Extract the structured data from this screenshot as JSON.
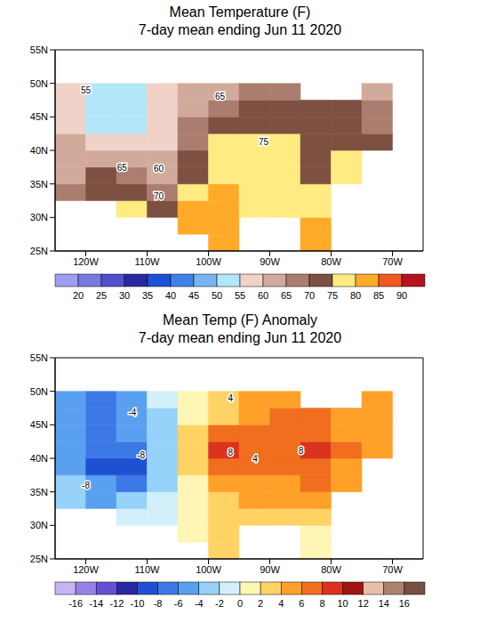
{
  "chart_data": [
    {
      "type": "heatmap",
      "title": "Mean Temperature (F)",
      "subtitle": "7-day mean ending Jun 11 2020",
      "xlim": [
        -125,
        -65
      ],
      "ylim": [
        25,
        55
      ],
      "xticks": [
        {
          "value": -120,
          "label": "120W"
        },
        {
          "value": -110,
          "label": "110W"
        },
        {
          "value": -100,
          "label": "100W"
        },
        {
          "value": -90,
          "label": "90W"
        },
        {
          "value": -80,
          "label": "80W"
        },
        {
          "value": -70,
          "label": "70W"
        }
      ],
      "yticks": [
        {
          "value": 25,
          "label": "25N"
        },
        {
          "value": 30,
          "label": "30N"
        },
        {
          "value": 35,
          "label": "35N"
        },
        {
          "value": 40,
          "label": "40N"
        },
        {
          "value": 45,
          "label": "45N"
        },
        {
          "value": 50,
          "label": "50N"
        },
        {
          "value": 55,
          "label": "55N"
        }
      ],
      "cells": {
        "lon": [
          -125,
          -120,
          -115,
          -110,
          -105,
          -100,
          -95,
          -90,
          -85,
          -80,
          -75,
          -70,
          -65
        ],
        "lat": [
          25,
          27.5,
          30,
          32.5,
          35,
          37.5,
          40,
          42.5,
          45,
          47.5,
          50
        ],
        "values": [
          [
            null,
            null,
            null,
            null,
            null,
            84,
            null,
            null,
            82,
            null,
            null,
            null
          ],
          [
            null,
            null,
            null,
            null,
            82,
            83,
            null,
            null,
            80,
            null,
            null,
            null
          ],
          [
            null,
            null,
            76,
            74,
            80,
            83,
            79,
            79,
            78,
            null,
            null,
            null
          ],
          [
            65,
            74,
            72,
            68,
            78,
            80,
            79,
            79,
            78,
            null,
            null,
            null
          ],
          [
            64,
            72,
            65,
            63,
            74,
            79,
            79,
            77,
            72,
            77,
            null,
            null
          ],
          [
            62,
            63,
            60,
            60,
            72,
            78,
            78,
            77,
            74,
            76,
            null,
            null
          ],
          [
            60,
            58,
            55,
            58,
            68,
            77,
            77,
            75,
            73,
            72,
            70,
            null
          ],
          [
            58,
            52,
            54,
            58,
            68,
            74,
            73,
            73,
            72,
            70,
            66,
            null
          ],
          [
            56,
            50,
            52,
            58,
            64,
            68,
            70,
            72,
            71,
            70,
            65,
            null
          ],
          [
            57,
            52,
            52,
            58,
            62,
            63,
            66,
            66,
            null,
            null,
            62,
            null
          ]
        ]
      },
      "colorbar": {
        "bounds": [
          20,
          25,
          30,
          35,
          40,
          45,
          50,
          55,
          60,
          65,
          70,
          75,
          80,
          85,
          90
        ],
        "colors": [
          "#9e9ef0",
          "#7878e0",
          "#5050c8",
          "#2828a0",
          "#1e50d2",
          "#3c82e6",
          "#78b4f0",
          "#b4e6fa",
          "#f0d2c8",
          "#d2aa9b",
          "#aa7d6e",
          "#7d5041",
          "#ffeb82",
          "#ffaa28",
          "#f05a1e",
          "#b4141e"
        ]
      },
      "annotations": [
        {
          "text": "55",
          "lon": -120,
          "lat": 48.9
        },
        {
          "text": "65",
          "lon": -98.1,
          "lat": 48
        },
        {
          "text": "75",
          "lon": -91,
          "lat": 41.25
        },
        {
          "text": "65",
          "lon": -114.1,
          "lat": 37.4
        },
        {
          "text": "60",
          "lon": -108.1,
          "lat": 37.25
        },
        {
          "text": "70",
          "lon": -108.1,
          "lat": 33.1
        }
      ]
    },
    {
      "type": "heatmap",
      "title": "Mean Temp (F) Anomaly",
      "subtitle": "7-day mean ending Jun 11 2020",
      "xlim": [
        -125,
        -65
      ],
      "ylim": [
        25,
        55
      ],
      "xticks": [
        {
          "value": -120,
          "label": "120W"
        },
        {
          "value": -110,
          "label": "110W"
        },
        {
          "value": -100,
          "label": "100W"
        },
        {
          "value": -90,
          "label": "90W"
        },
        {
          "value": -80,
          "label": "80W"
        },
        {
          "value": -70,
          "label": "70W"
        }
      ],
      "yticks": [
        {
          "value": 25,
          "label": "25N"
        },
        {
          "value": 30,
          "label": "30N"
        },
        {
          "value": 35,
          "label": "35N"
        },
        {
          "value": 40,
          "label": "40N"
        },
        {
          "value": 45,
          "label": "45N"
        },
        {
          "value": 50,
          "label": "50N"
        },
        {
          "value": 55,
          "label": "55N"
        }
      ],
      "cells": {
        "lon": [
          -125,
          -120,
          -115,
          -110,
          -105,
          -100,
          -95,
          -90,
          -85,
          -80,
          -75,
          -70,
          -65
        ],
        "lat": [
          25,
          27.5,
          30,
          32.5,
          35,
          37.5,
          40,
          42.5,
          45,
          47.5,
          50
        ],
        "values": [
          [
            null,
            null,
            null,
            null,
            null,
            2,
            null,
            null,
            1,
            null,
            null,
            null
          ],
          [
            null,
            null,
            null,
            null,
            1,
            2,
            null,
            null,
            1,
            null,
            null,
            null
          ],
          [
            null,
            null,
            -2,
            -1,
            1,
            3,
            3,
            3,
            2,
            null,
            null,
            null
          ],
          [
            -4,
            -6,
            -4,
            -2,
            1,
            3,
            4,
            4,
            4,
            null,
            null,
            null
          ],
          [
            -3,
            -6,
            -7,
            -3,
            1,
            4,
            4,
            5,
            7,
            5,
            null,
            null
          ],
          [
            -5,
            -10,
            -9,
            -4,
            2,
            6,
            6,
            6,
            6,
            5,
            null,
            null
          ],
          [
            -6,
            -8,
            -8,
            -4,
            2,
            8,
            6,
            6,
            8,
            6,
            4,
            null
          ],
          [
            -6,
            -8,
            -6,
            -3,
            2,
            6,
            7,
            6,
            6,
            5,
            4,
            null
          ],
          [
            -6,
            -8,
            -6,
            -3,
            1,
            3,
            5,
            6,
            6,
            5,
            4,
            null
          ],
          [
            -6,
            -7,
            -5,
            -2,
            1,
            2,
            4,
            4,
            null,
            null,
            4,
            null
          ]
        ]
      },
      "colorbar": {
        "bounds": [
          -16,
          -14,
          -12,
          -10,
          -8,
          -6,
          -4,
          -2,
          0,
          2,
          4,
          6,
          8,
          10,
          12,
          14,
          16
        ],
        "colors": [
          "#c8b4f0",
          "#9682e6",
          "#6450d2",
          "#2828a0",
          "#1e50d2",
          "#3c78e6",
          "#5aa0f0",
          "#96d2fa",
          "#d2f0fa",
          "#fff5b4",
          "#ffd264",
          "#ffa028",
          "#f06e1e",
          "#dc321e",
          "#a01414",
          "#e6beaa",
          "#aa826e",
          "#785041"
        ]
      },
      "annotations": [
        {
          "text": "4",
          "lon": -96.4,
          "lat": 49
        },
        {
          "text": "-4",
          "lon": -112.4,
          "lat": 46.9
        },
        {
          "text": "8",
          "lon": -96.4,
          "lat": 40.9
        },
        {
          "text": "4",
          "lon": -92.4,
          "lat": 39.9
        },
        {
          "text": "8",
          "lon": -84.9,
          "lat": 41.1
        },
        {
          "text": "-8",
          "lon": -111,
          "lat": 40.5
        },
        {
          "text": "-8",
          "lon": -120,
          "lat": 35.9
        }
      ]
    }
  ]
}
